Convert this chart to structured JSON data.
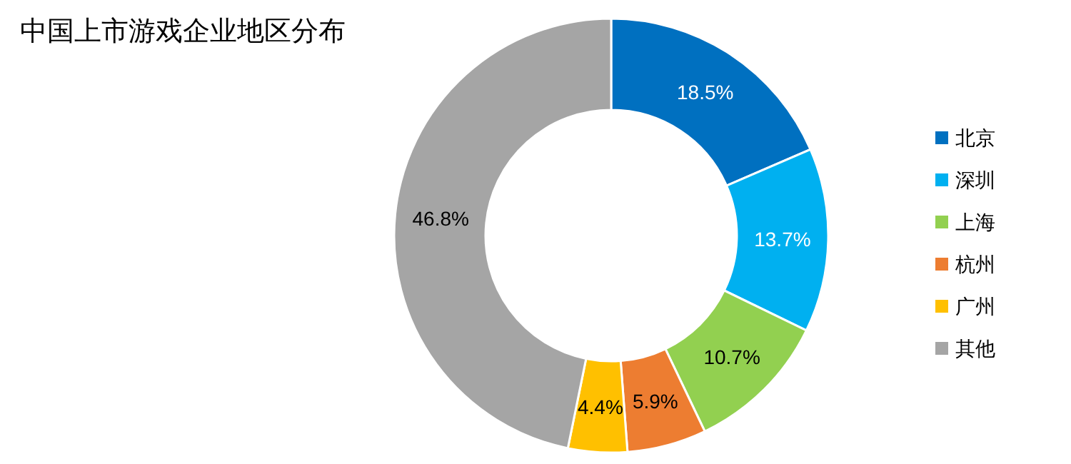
{
  "chart_data": {
    "type": "donut",
    "title": "中国上市游戏企业地区分布",
    "categories": [
      "北京",
      "深圳",
      "上海",
      "杭州",
      "广州",
      "其他"
    ],
    "values": [
      18.5,
      13.7,
      10.7,
      5.9,
      4.4,
      46.8
    ],
    "value_labels": [
      "18.5%",
      "13.7%",
      "10.7%",
      "5.9%",
      "4.4%",
      "46.8%"
    ],
    "colors": [
      "#0070c0",
      "#00b0f0",
      "#92d050",
      "#ed7d31",
      "#ffc000",
      "#a5a5a5"
    ],
    "legend": "right"
  }
}
